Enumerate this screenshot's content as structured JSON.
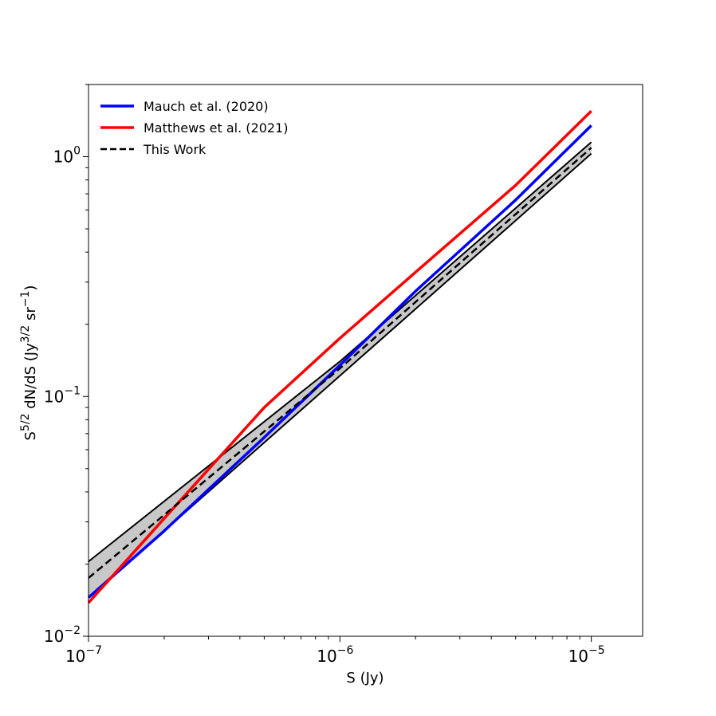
{
  "chart_data": {
    "type": "line",
    "xscale": "log",
    "yscale": "log",
    "xlim": [
      1e-07,
      1.6e-05
    ],
    "ylim": [
      0.01,
      2.0
    ],
    "xlabel": "S (Jy)",
    "ylabel": "S5/2 dN/dS (Jy3/2 sr−1)",
    "ylabel_parts": {
      "s": "S",
      "s_exp": "5/2",
      "mid": " dN/dS (Jy",
      "unit_exp": "3/2",
      "sr": " sr",
      "sr_exp": "−1",
      "close": ")"
    },
    "x_ticks": [
      {
        "value": 1e-07,
        "base": "10",
        "exp": "−7"
      },
      {
        "value": 1e-06,
        "base": "10",
        "exp": "−6"
      },
      {
        "value": 1e-05,
        "base": "10",
        "exp": "−5"
      }
    ],
    "y_ticks": [
      {
        "value": 0.01,
        "base": "10",
        "exp": "−2"
      },
      {
        "value": 0.1,
        "base": "10",
        "exp": "−1"
      },
      {
        "value": 1.0,
        "base": "10",
        "exp": "0"
      }
    ],
    "legend_position": "top-left",
    "grid": false,
    "series": [
      {
        "name": "Mauch et al. (2020)",
        "color": "#0000ff",
        "style": "solid",
        "x": [
          1e-07,
          2e-07,
          5e-07,
          1e-06,
          2e-06,
          5e-06,
          1e-05
        ],
        "y": [
          0.0145,
          0.0275,
          0.0675,
          0.135,
          0.275,
          0.66,
          1.35
        ]
      },
      {
        "name": "Matthews et al. (2021)",
        "color": "#ff0000",
        "style": "solid",
        "x": [
          1e-07,
          2e-07,
          5e-07,
          1e-06,
          2e-06,
          5e-06,
          1e-05
        ],
        "y": [
          0.0138,
          0.031,
          0.09,
          0.175,
          0.33,
          0.76,
          1.55
        ]
      },
      {
        "name": "This Work",
        "color": "#000000",
        "style": "dashed",
        "x": [
          1e-07,
          1e-06,
          1e-05
        ],
        "y": [
          0.0175,
          0.131,
          1.09
        ]
      }
    ],
    "band": {
      "color": "#c8c8c8",
      "x": [
        1e-07,
        1e-06,
        1e-05
      ],
      "upper": [
        0.0205,
        0.14,
        1.15
      ],
      "lower": [
        0.0145,
        0.122,
        1.03
      ]
    }
  }
}
